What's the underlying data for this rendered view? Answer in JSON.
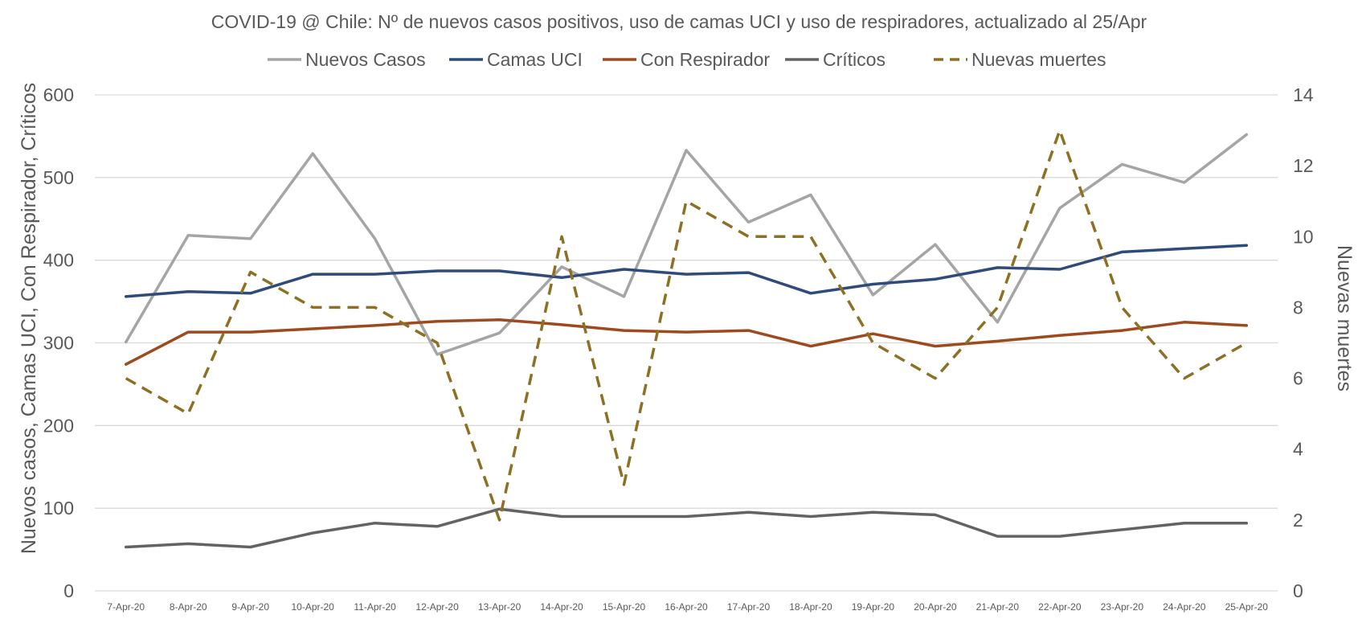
{
  "chart_data": {
    "type": "line",
    "title": "COVID-19 @ Chile: Nº de nuevos casos positivos, uso de camas UCI y uso de respiradores, actualizado al 25/Apr",
    "categories": [
      "7-Apr-20",
      "8-Apr-20",
      "9-Apr-20",
      "10-Apr-20",
      "11-Apr-20",
      "12-Apr-20",
      "13-Apr-20",
      "14-Apr-20",
      "15-Apr-20",
      "16-Apr-20",
      "17-Apr-20",
      "18-Apr-20",
      "19-Apr-20",
      "20-Apr-20",
      "21-Apr-20",
      "22-Apr-20",
      "23-Apr-20",
      "24-Apr-20",
      "25-Apr-20"
    ],
    "ylabel_left": "Nuevos casos, Camas UCI, Con Respirador, Críticos",
    "ylabel_right": "Nuevas muertes",
    "ylim_left": [
      0,
      600
    ],
    "ylim_right": [
      0,
      14
    ],
    "yticks_left": [
      "0",
      "100",
      "200",
      "300",
      "400",
      "500",
      "600"
    ],
    "yticks_right": [
      "0",
      "2",
      "4",
      "6",
      "8",
      "10",
      "12",
      "14"
    ],
    "grid": "horizontal",
    "legend_position": "top",
    "series": [
      {
        "name": "Nuevos Casos",
        "axis": "left",
        "color": "#a5a5a5",
        "dash": "solid",
        "values": [
          301,
          430,
          426,
          529,
          426,
          286,
          312,
          392,
          356,
          533,
          446,
          479,
          358,
          419,
          325,
          463,
          516,
          494,
          552
        ]
      },
      {
        "name": "Camas UCI",
        "axis": "left",
        "color": "#2f4b7c",
        "dash": "solid",
        "values": [
          356,
          362,
          360,
          383,
          383,
          387,
          387,
          379,
          389,
          383,
          385,
          360,
          371,
          377,
          391,
          389,
          410,
          414,
          418
        ]
      },
      {
        "name": "Con Respirador",
        "axis": "left",
        "color": "#9e4a1e",
        "dash": "solid",
        "values": [
          274,
          313,
          313,
          317,
          321,
          326,
          328,
          322,
          315,
          313,
          315,
          296,
          311,
          296,
          302,
          309,
          315,
          325,
          321
        ]
      },
      {
        "name": "Críticos",
        "axis": "left",
        "color": "#636363",
        "dash": "solid",
        "values": [
          53,
          57,
          53,
          70,
          82,
          78,
          99,
          90,
          90,
          90,
          95,
          90,
          95,
          92,
          66,
          66,
          74,
          82,
          82
        ]
      },
      {
        "name": "Nuevas muertes",
        "axis": "right",
        "color": "#8c7124",
        "dash": "dashed",
        "values": [
          6,
          5,
          9,
          8,
          8,
          7,
          2,
          10,
          3,
          11,
          10,
          10,
          7,
          6,
          8,
          13,
          8,
          6,
          7
        ]
      }
    ]
  }
}
